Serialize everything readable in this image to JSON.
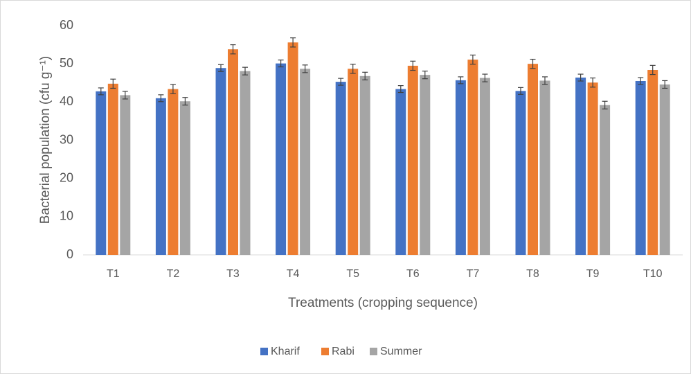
{
  "chart_data": {
    "type": "bar",
    "y_label": "Bacterial population (cfu g⁻¹)",
    "x_label": "Treatments (cropping sequence)",
    "categories": [
      "T1",
      "T2",
      "T3",
      "T4",
      "T5",
      "T6",
      "T7",
      "T8",
      "T9",
      "T10"
    ],
    "series": [
      {
        "name": "Kharif",
        "color": "#4472c4",
        "values": [
          42.8,
          41.0,
          48.9,
          50.1,
          45.3,
          43.4,
          45.7,
          42.9,
          46.4,
          45.5
        ],
        "errors": [
          0.9,
          0.9,
          0.9,
          0.9,
          0.9,
          0.9,
          0.9,
          0.9,
          0.9,
          0.9
        ]
      },
      {
        "name": "Rabi",
        "color": "#ed7d31",
        "values": [
          44.8,
          43.4,
          53.8,
          55.6,
          48.7,
          49.5,
          51.1,
          50.0,
          45.1,
          48.4
        ],
        "errors": [
          1.2,
          1.2,
          1.2,
          1.2,
          1.2,
          1.2,
          1.2,
          1.2,
          1.2,
          1.2
        ]
      },
      {
        "name": "Summer",
        "color": "#a5a5a5",
        "values": [
          41.8,
          40.2,
          48.1,
          48.7,
          46.8,
          47.1,
          46.3,
          45.6,
          39.2,
          44.6
        ],
        "errors": [
          1.0,
          1.0,
          1.0,
          1.0,
          1.0,
          1.0,
          1.0,
          1.0,
          1.0,
          1.0
        ]
      }
    ],
    "ylim": [
      0,
      60
    ],
    "yticks": [
      0,
      10,
      20,
      30,
      40,
      50,
      60
    ],
    "grid": false,
    "legend": "bottom"
  }
}
